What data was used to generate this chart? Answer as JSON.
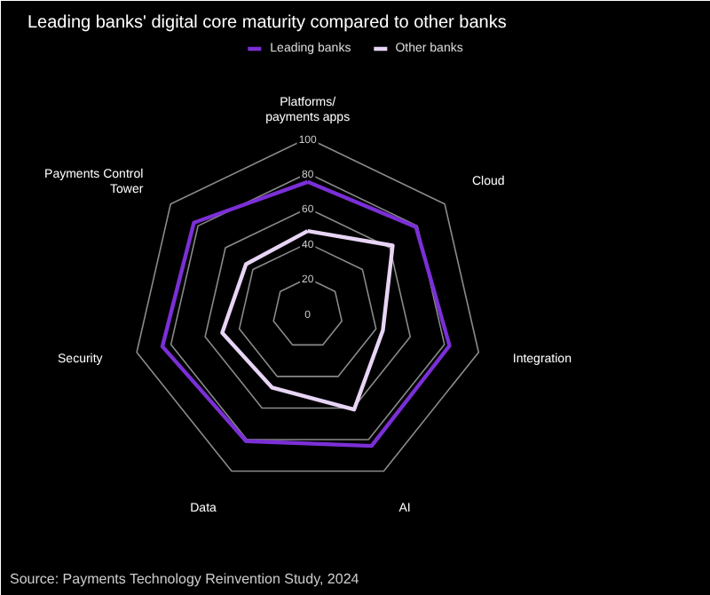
{
  "chart_data": {
    "type": "radar",
    "title": "Leading banks' digital core maturity compared to other banks",
    "categories": [
      "Platforms/\npayments apps",
      "Cloud",
      "Integration",
      "AI",
      "Data",
      "Security",
      "Payments Control\nTower"
    ],
    "series": [
      {
        "name": "Leading banks",
        "color": "#7b2fd6",
        "values": [
          75,
          79,
          83,
          84,
          81,
          85,
          83
        ]
      },
      {
        "name": "Other banks",
        "color": "#e8d5f5",
        "values": [
          47,
          62,
          44,
          61,
          47,
          50,
          45
        ]
      }
    ],
    "ylim": [
      0,
      100
    ],
    "yticks": [
      0,
      20,
      40,
      60,
      80,
      100
    ],
    "legend": "top",
    "annotations": [
      "Source: Payments Technology Reinvention Study, 2024"
    ]
  }
}
